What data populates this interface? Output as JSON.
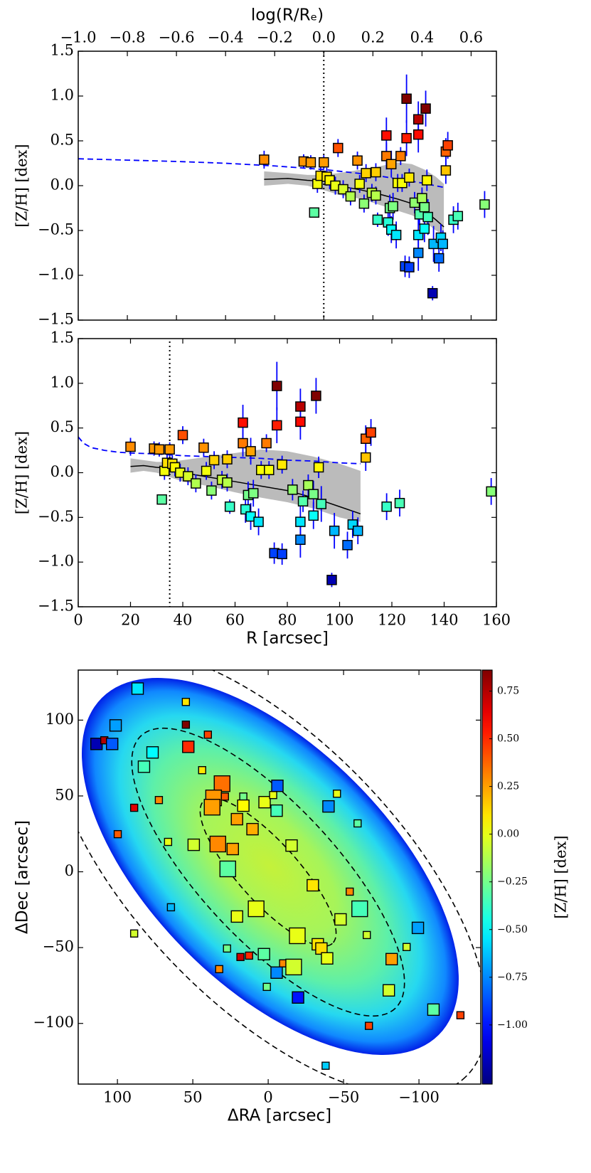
{
  "chart_data": [
    {
      "type": "profile",
      "xlabel": "log(R/Rₑ)",
      "xaxis_position": "top",
      "ylabel": "[Z/H] [dex]",
      "xlim": [
        -1.0,
        0.703
      ],
      "xticks": [
        {
          "value": -1.0,
          "label": "−1.0"
        },
        {
          "value": -0.8,
          "label": "−0.8"
        },
        {
          "value": -0.6,
          "label": "−0.6"
        },
        {
          "value": -0.4,
          "label": "−0.4"
        },
        {
          "value": -0.2,
          "label": "−0.2"
        },
        {
          "value": 0,
          "label": "0.0"
        },
        0.2,
        0.4,
        0.6
      ],
      "ylim": [
        -1.5,
        1.5
      ],
      "yticks": [
        {
          "value": -1.5,
          "label": "−1.5"
        },
        {
          "value": -1.0,
          "label": "−1.0"
        },
        {
          "value": -0.5,
          "label": "−0.5"
        },
        {
          "value": 0,
          "label": "0.0"
        },
        0.5,
        {
          "value": 1.0,
          "label": "1.0"
        },
        1.5
      ],
      "vline": 0,
      "x": [
        -0.243,
        -0.082,
        -0.053,
        0,
        -0.039,
        -0.026,
        -0.013,
        0.012,
        0.024,
        0.058,
        0.047,
        0.079,
        0.109,
        0.137,
        0.146,
        0.164,
        0.172,
        0.196,
        0.212,
        0.212,
        0.219,
        0.255,
        0.255,
        0.262,
        0.269,
        0.275,
        0.275,
        0.282,
        0.295,
        0.301,
        0.313,
        0.319,
        0.337,
        0.337,
        0.331,
        0.348,
        0.348,
        0.37,
        0.385,
        0.385,
        0.385,
        0.385,
        0.39,
        0.4,
        0.41,
        0.41,
        0.415,
        0.42,
        0.424,
        0.443,
        0.447,
        0.469,
        0.477,
        0.485,
        0.497,
        0.497,
        0.505,
        0.528,
        0.546,
        0.655
      ],
      "values": [
        0.29,
        0.27,
        0.26,
        0.26,
        -0.3,
        0.02,
        0.11,
        0.1,
        0.06,
        0.42,
        0.0,
        -0.04,
        -0.12,
        0.28,
        0.02,
        -0.2,
        0.14,
        -0.08,
        0.15,
        -0.11,
        -0.38,
        0.56,
        0.33,
        -0.41,
        -0.25,
        0.24,
        -0.49,
        -0.23,
        -0.55,
        0.03,
        0.33,
        0.03,
        0.97,
        0.53,
        -0.9,
        -0.91,
        0.09,
        -0.19,
        0.74,
        0.57,
        -0.55,
        -0.75,
        -0.32,
        -0.14,
        -0.24,
        -0.48,
        0.86,
        0.06,
        -0.35,
        -1.2,
        -0.65,
        -0.81,
        -0.58,
        -0.65,
        0.17,
        0.38,
        0.45,
        -0.38,
        -0.34,
        -0.21
      ],
      "errors": [
        0.1,
        0.08,
        0.08,
        0.08,
        0.05,
        0.1,
        0.1,
        0.1,
        0.1,
        0.1,
        0.1,
        0.1,
        0.1,
        0.1,
        0.1,
        0.1,
        0.1,
        0.1,
        0.1,
        0.1,
        0.08,
        0.2,
        0.15,
        0.15,
        0.15,
        0.15,
        0.15,
        0.15,
        0.15,
        0.1,
        0.1,
        0.1,
        0.27,
        0.2,
        0.12,
        0.12,
        0.1,
        0.12,
        0.2,
        0.2,
        0.2,
        0.2,
        0.12,
        0.12,
        0.15,
        0.15,
        0.2,
        0.12,
        0.2,
        0.08,
        0.2,
        0.15,
        0.15,
        0.15,
        0.15,
        0.15,
        0.15,
        0.15,
        0.15,
        0.15
      ],
      "error_color": "#0000ff",
      "median": {
        "x": [
          -0.243,
          -0.146,
          -0.067,
          0,
          0.058,
          0.155,
          0.234,
          0.301,
          0.359,
          0.41,
          0.456,
          0.489
        ],
        "values": [
          0.07,
          0.08,
          0.06,
          0.05,
          0.0,
          -0.05,
          -0.1,
          -0.15,
          -0.2,
          -0.28,
          -0.38,
          -0.46
        ],
        "color": "#000000"
      },
      "band": {
        "upper": [
          0.16,
          0.14,
          0.12,
          0.12,
          0.14,
          0.18,
          0.22,
          0.26,
          0.24,
          0.18,
          0.1,
          0.02
        ],
        "lower": [
          0.0,
          0.02,
          0.0,
          -0.05,
          -0.1,
          -0.15,
          -0.22,
          -0.28,
          -0.33,
          -0.4,
          -0.5,
          -0.55
        ],
        "color": "#bbbbbb"
      },
      "model": {
        "x": [
          -1.0,
          -0.8,
          -0.6,
          -0.4,
          -0.2,
          0.0,
          0.2,
          0.4,
          0.49
        ],
        "values": [
          0.3,
          0.285,
          0.27,
          0.25,
          0.22,
          0.18,
          0.12,
          0.03,
          -0.02
        ],
        "color": "#0000ff"
      }
    },
    {
      "type": "profile",
      "xlabel": "R [arcsec]",
      "xaxis_position": "bottom",
      "ylabel": "[Z/H] [dex]",
      "xlim": [
        0,
        160
      ],
      "xticks": [
        0,
        20,
        40,
        60,
        80,
        100,
        120,
        140,
        160
      ],
      "ylim": [
        -1.5,
        1.5
      ],
      "yticks": [
        {
          "value": -1.5,
          "label": "−1.5"
        },
        {
          "value": -1.0,
          "label": "−1.0"
        },
        {
          "value": -0.5,
          "label": "−0.5"
        },
        {
          "value": 0,
          "label": "0.0"
        },
        0.5,
        {
          "value": 1.0,
          "label": "1.0"
        },
        1.5
      ],
      "vline": 35,
      "x": [
        20,
        29,
        31,
        35,
        32,
        33,
        34,
        36,
        37,
        40,
        39,
        42,
        45,
        48,
        49,
        51,
        52,
        55,
        57,
        57,
        58,
        63,
        63,
        64,
        65,
        66,
        66,
        67,
        69,
        70,
        72,
        73,
        76,
        76,
        75,
        78,
        78,
        82,
        85,
        85,
        85,
        85,
        86,
        88,
        90,
        90,
        91,
        92,
        93,
        97,
        98,
        103,
        105,
        107,
        110,
        110,
        112,
        118,
        123,
        158
      ],
      "values": [
        0.29,
        0.27,
        0.26,
        0.26,
        -0.3,
        0.02,
        0.11,
        0.1,
        0.06,
        0.42,
        0.0,
        -0.04,
        -0.12,
        0.28,
        0.02,
        -0.2,
        0.14,
        -0.08,
        0.15,
        -0.11,
        -0.38,
        0.56,
        0.33,
        -0.41,
        -0.25,
        0.24,
        -0.49,
        -0.23,
        -0.55,
        0.03,
        0.33,
        0.03,
        0.97,
        0.53,
        -0.9,
        -0.91,
        0.09,
        -0.19,
        0.74,
        0.57,
        -0.55,
        -0.75,
        -0.32,
        -0.14,
        -0.24,
        -0.48,
        0.86,
        0.06,
        -0.35,
        -1.2,
        -0.65,
        -0.81,
        -0.58,
        -0.65,
        0.17,
        0.38,
        0.45,
        -0.38,
        -0.34,
        -0.21
      ],
      "errors": [
        0.1,
        0.08,
        0.08,
        0.08,
        0.05,
        0.1,
        0.1,
        0.1,
        0.1,
        0.1,
        0.1,
        0.1,
        0.1,
        0.1,
        0.1,
        0.1,
        0.1,
        0.1,
        0.1,
        0.1,
        0.08,
        0.2,
        0.15,
        0.15,
        0.15,
        0.15,
        0.15,
        0.15,
        0.15,
        0.1,
        0.1,
        0.1,
        0.27,
        0.2,
        0.12,
        0.12,
        0.1,
        0.12,
        0.2,
        0.2,
        0.2,
        0.2,
        0.12,
        0.12,
        0.15,
        0.15,
        0.2,
        0.12,
        0.2,
        0.08,
        0.2,
        0.15,
        0.15,
        0.15,
        0.15,
        0.15,
        0.15,
        0.15,
        0.15,
        0.15
      ],
      "error_color": "#0000ff",
      "median": {
        "x": [
          20,
          25,
          30,
          35,
          40,
          50,
          60,
          70,
          80,
          90,
          100,
          108
        ],
        "values": [
          0.07,
          0.08,
          0.06,
          0.05,
          0.0,
          -0.05,
          -0.1,
          -0.15,
          -0.2,
          -0.28,
          -0.38,
          -0.46
        ],
        "color": "#000000"
      },
      "band": {
        "upper": [
          0.16,
          0.14,
          0.12,
          0.12,
          0.14,
          0.18,
          0.22,
          0.26,
          0.24,
          0.18,
          0.1,
          0.02
        ],
        "lower": [
          0.0,
          0.02,
          0.0,
          -0.05,
          -0.1,
          -0.15,
          -0.22,
          -0.28,
          -0.33,
          -0.4,
          -0.5,
          -0.55
        ],
        "color": "#bbbbbb"
      },
      "model": {
        "x": [
          0,
          2,
          5,
          10,
          15,
          20,
          30,
          40,
          50,
          60,
          70,
          80,
          90,
          100,
          108
        ],
        "values": [
          0.4,
          0.33,
          0.28,
          0.25,
          0.23,
          0.22,
          0.21,
          0.19,
          0.18,
          0.17,
          0.16,
          0.14,
          0.13,
          0.11,
          0.1
        ],
        "color": "#0000ff"
      }
    },
    {
      "type": "map",
      "xlabel": "ΔRA [arcsec]",
      "ylabel": "ΔDec [arcsec]",
      "xaxis_position": "bottom",
      "xlim": [
        126,
        -141
      ],
      "xticks": [
        100,
        50,
        0,
        {
          "value": -50,
          "label": "−50"
        },
        {
          "value": -100,
          "label": "−100"
        }
      ],
      "ylim": [
        -140,
        133
      ],
      "yticks": [
        {
          "value": -100,
          "label": "−100"
        },
        {
          "value": -50,
          "label": "−50"
        },
        0,
        50,
        100
      ],
      "zlabel": "[Z/H] [dex]",
      "zlim": [
        -1.31,
        0.86
      ],
      "zticks": [
        0.75,
        {
          "value": 0.5,
          "label": "0.50"
        },
        0.25,
        {
          "value": 0,
          "label": "0.00"
        },
        {
          "value": -0.25,
          "label": "−0.25"
        },
        {
          "value": -0.5,
          "label": "−0.50"
        },
        {
          "value": -0.75,
          "label": "−0.75"
        },
        {
          "value": -1.0,
          "label": "−1.00"
        }
      ],
      "colormap": "jet",
      "x": [
        86.6,
        54.6,
        54.6,
        40,
        53,
        113.9,
        108.7,
        103.5,
        101.2,
        76.7,
        82.4,
        43.8,
        72.5,
        88.9,
        30.6,
        36.2,
        28.7,
        16.5,
        37.2,
        16.5,
        2.4,
        -3.3,
        -6.1,
        -5.6,
        -45.6,
        -40,
        -59.3,
        20.7,
        10.4,
        99.8,
        66.4,
        49.4,
        33.4,
        23.5,
        -15.5,
        26.8,
        -29.6,
        -54.1,
        -60.7,
        8,
        64.5,
        20.7,
        -48,
        -65.4,
        -19.3,
        -32.9,
        -35.3,
        -39.1,
        -81.9,
        88.9,
        27.3,
        18.4,
        12.7,
        2.8,
        -5.6,
        -9.9,
        -16.9,
        32.5,
        0.9,
        -19.8,
        -80,
        -91.8,
        -99.3,
        -109.6,
        -127.5,
        -66.8,
        -38.1
      ],
      "y": [
        120.8,
        112,
        97,
        90.4,
        82.4,
        84.3,
        86.7,
        84.3,
        96.5,
        78.7,
        69.3,
        67,
        47.3,
        42.2,
        58.1,
        48.7,
        49.6,
        49.6,
        42.6,
        43.6,
        45.9,
        50.6,
        56.7,
        40.3,
        51.5,
        43.1,
        31.9,
        34.7,
        28.1,
        24.8,
        19.7,
        17.8,
        18.3,
        15,
        17.3,
        1.9,
        -8.9,
        -13.1,
        -24.4,
        -24.4,
        -23.4,
        -29.5,
        -31.4,
        -41.7,
        -42.2,
        -47.8,
        -50.6,
        -57.1,
        -57.6,
        -40.7,
        -50.6,
        -56.2,
        -55.3,
        -54.3,
        -66.5,
        -60.4,
        -62.8,
        -64.2,
        -75.9,
        -82.9,
        -78.2,
        -49.6,
        -37,
        -90.9,
        -94.6,
        -101.6,
        -127.9
      ],
      "values": [
        -0.55,
        0.1,
        0.95,
        0.45,
        0.5,
        -1.2,
        0.75,
        -0.85,
        -0.7,
        -0.5,
        -0.35,
        0.1,
        0.3,
        0.65,
        0.35,
        0.27,
        0.4,
        -0.25,
        0.25,
        0.05,
        0,
        0,
        -0.85,
        -0.35,
        0,
        -0.75,
        -0.3,
        0.25,
        0.22,
        0.4,
        0,
        -0.05,
        0.3,
        0.25,
        -0.05,
        -0.3,
        0.1,
        0.3,
        -0.35,
        0,
        -0.65,
        0,
        -0.05,
        -0.05,
        0,
        0.1,
        0.12,
        0,
        0.25,
        -0.05,
        -0.25,
        0.7,
        0.5,
        -0.3,
        -0.75,
        0.3,
        -0.05,
        0.3,
        -0.25,
        -1.0,
        -0.05,
        -0.05,
        -0.7,
        -0.3,
        0.45,
        0.45,
        -0.6
      ],
      "sizes": [
        16,
        10,
        10,
        10,
        16,
        16,
        10,
        16,
        16,
        16,
        16,
        10,
        10,
        10,
        22,
        22,
        10,
        10,
        22,
        16,
        16,
        10,
        16,
        16,
        10,
        16,
        10,
        16,
        16,
        10,
        10,
        16,
        22,
        16,
        16,
        22,
        16,
        10,
        22,
        22,
        10,
        16,
        16,
        10,
        22,
        16,
        16,
        16,
        16,
        10,
        10,
        10,
        10,
        16,
        16,
        10,
        22,
        10,
        10,
        16,
        16,
        10,
        16,
        16,
        10,
        10,
        10
      ]
    }
  ]
}
